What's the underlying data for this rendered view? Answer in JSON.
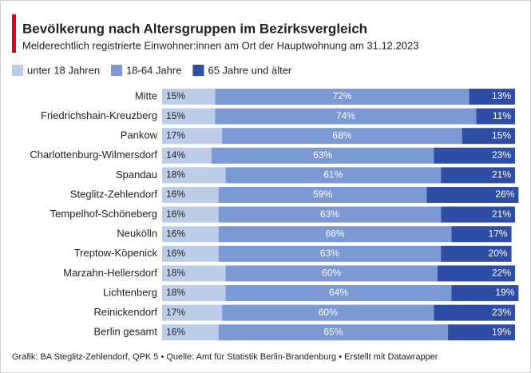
{
  "chart_data": {
    "type": "stacked-bar-horizontal",
    "title": "Bevölkerung nach Altersgruppen im Bezirksvergleich",
    "subtitle": "Melderechtlich registrierte Einwohner:innen am Ort der Hauptwohnung am 31.12.2023",
    "footer": "Grafik: BA Steglitz-Zehlendorf, QPK 5 • Quelle: Amt für Statistik Berlin-Brandenburg • Erstellt mit Datawrapper",
    "categories": [
      "Mitte",
      "Friedrichshain-Kreuzberg",
      "Pankow",
      "Charlottenburg-Wilmersdorf",
      "Spandau",
      "Steglitz-Zehlendorf",
      "Tempelhof-Schöneberg",
      "Neukölln",
      "Treptow-Köpenick",
      "Marzahn-Hellersdorf",
      "Lichtenberg",
      "Reinickendorf",
      "Berlin gesamt"
    ],
    "xlim": [
      0,
      100
    ],
    "series": [
      {
        "name": "unter 18 Jahren",
        "color": "#bccde9",
        "label_color": "#222222",
        "values": [
          15,
          15,
          17,
          14,
          18,
          16,
          16,
          16,
          16,
          18,
          18,
          17,
          16
        ],
        "value_labels": [
          "15%",
          "15%",
          "17%",
          "14%",
          "18%",
          "16%",
          "16%",
          "16%",
          "16%",
          "18%",
          "18%",
          "17%",
          "16%"
        ]
      },
      {
        "name": "18-64 Jahre",
        "color": "#7b99d3",
        "label_color": "#ffffff",
        "values": [
          72,
          74,
          68,
          63,
          61,
          59,
          63,
          66,
          63,
          60,
          64,
          60,
          65
        ],
        "value_labels": [
          "72%",
          "74%",
          "68%",
          "63%",
          "61%",
          "59%",
          "63%",
          "66%",
          "63%",
          "60%",
          "64%",
          "60%",
          "65%"
        ]
      },
      {
        "name": "65 Jahre und älter",
        "color": "#2e4ea6",
        "label_color": "#ffffff",
        "values": [
          13,
          11,
          15,
          23,
          21,
          26,
          21,
          17,
          20,
          22,
          19,
          23,
          19
        ],
        "value_labels": [
          "13%",
          "11%",
          "15%",
          "23%",
          "21%",
          "26%",
          "21%",
          "17%",
          "20%",
          "22%",
          "19%",
          "23%",
          "19%"
        ]
      }
    ]
  }
}
